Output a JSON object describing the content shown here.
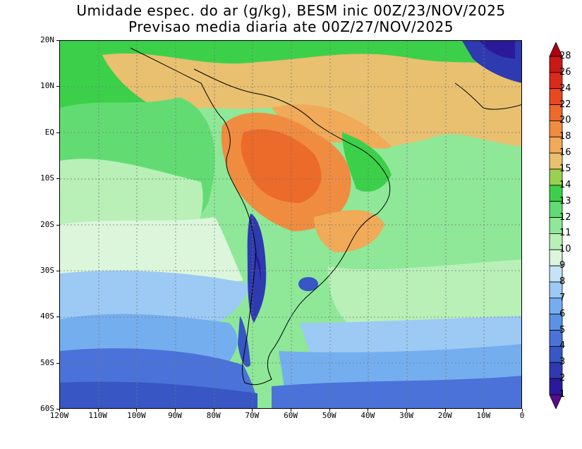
{
  "title": {
    "line1": "Umidade espec. do ar (g/kg), BESM inic 00Z/23/NOV/2025",
    "line2": "Previsao media diaria ate 00Z/27/NOV/2025"
  },
  "map": {
    "lat_labels": [
      "20N",
      "10N",
      "EQ",
      "10S",
      "20S",
      "30S",
      "40S",
      "50S",
      "60S"
    ],
    "lon_labels": [
      "120W",
      "110W",
      "100W",
      "90W",
      "80W",
      "70W",
      "60W",
      "50W",
      "40W",
      "30W",
      "20W",
      "10W",
      "0"
    ]
  },
  "colorbar": {
    "labels": [
      "1",
      "2",
      "3",
      "4",
      "5",
      "6",
      "7",
      "8",
      "9",
      "10",
      "11",
      "12",
      "13",
      "14",
      "15",
      "16",
      "18",
      "20",
      "22",
      "24",
      "26",
      "28"
    ],
    "colors": [
      "#5a0a8c",
      "#2a1a9a",
      "#2e3ab0",
      "#3856c4",
      "#4a72d8",
      "#5c92e6",
      "#74aeef",
      "#9ccaf5",
      "#c4e2f8",
      "#dcf6dc",
      "#b8f0b8",
      "#8ee898",
      "#62dc72",
      "#3cd04a",
      "#9cd050",
      "#e8c070",
      "#f0aa58",
      "#f08c40",
      "#ec6a2a",
      "#e84820",
      "#dc2a1a",
      "#c81818",
      "#b00010"
    ]
  }
}
